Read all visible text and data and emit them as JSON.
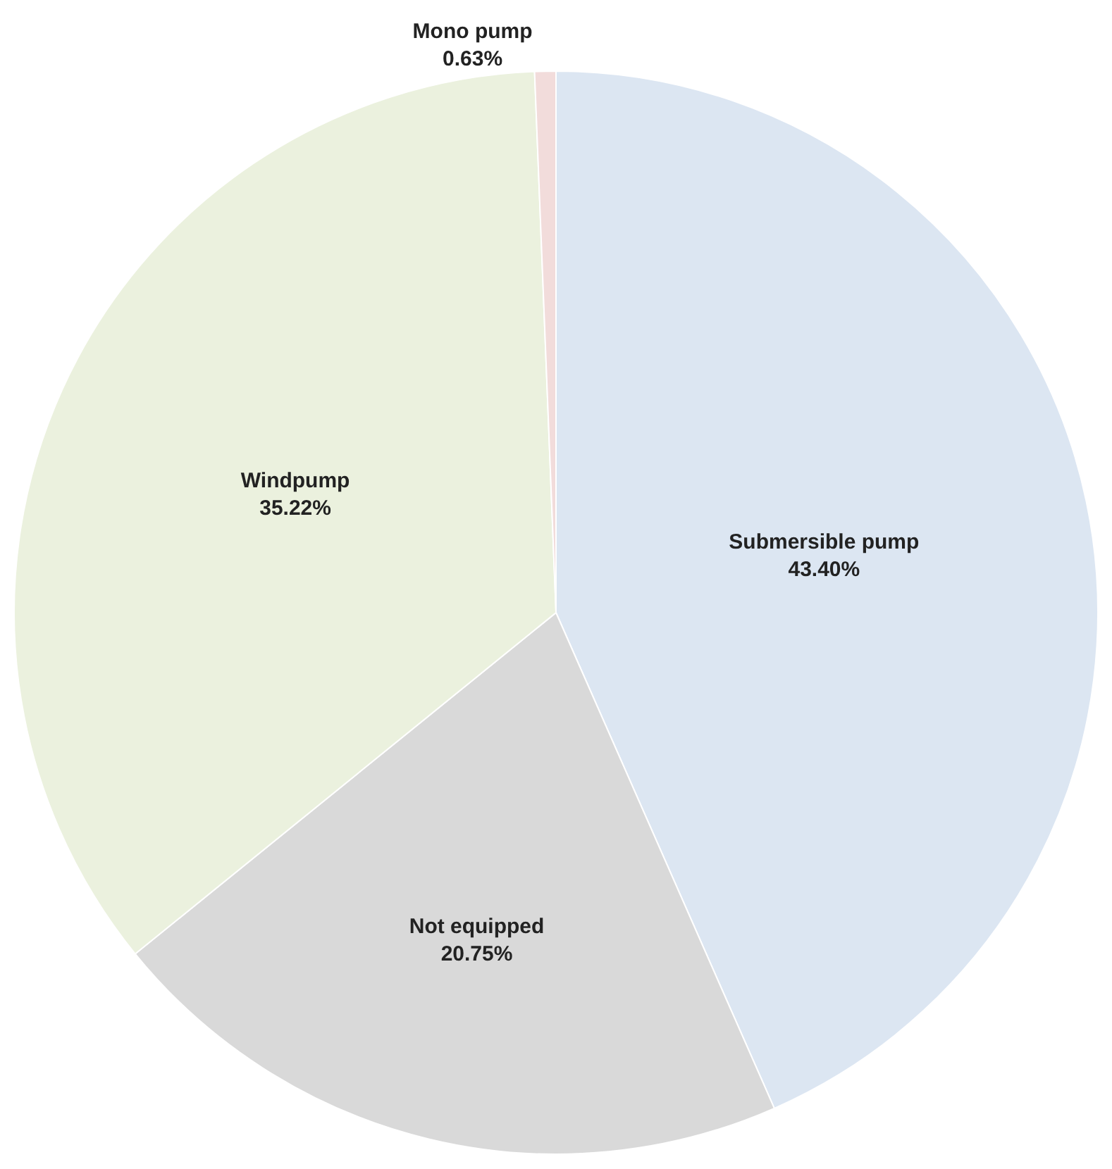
{
  "chart_data": {
    "type": "pie",
    "categories": [
      "Submersible pump",
      "Not equipped",
      "Windpump",
      "Mono pump"
    ],
    "values": [
      43.4,
      20.75,
      35.22,
      0.63
    ],
    "value_labels": [
      "43.40%",
      "20.75%",
      "35.22%",
      "0.63%"
    ],
    "colors": [
      "#dce6f2",
      "#d9d9d9",
      "#ebf1de",
      "#f2dcdb"
    ],
    "legend": false
  }
}
